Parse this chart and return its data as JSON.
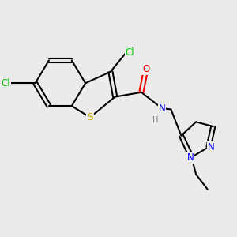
{
  "bg_color": "#ebebeb",
  "bond_color": "#000000",
  "bond_width": 1.5,
  "atoms": {
    "S": {
      "color": "#ccaa00"
    },
    "O": {
      "color": "#ff0000"
    },
    "N": {
      "color": "#0000ff"
    },
    "Cl_top": {
      "color": "#00cc00"
    },
    "Cl_left": {
      "color": "#00cc00"
    },
    "H": {
      "color": "#777777"
    }
  },
  "figsize": [
    3.0,
    3.0
  ],
  "dpi": 100
}
